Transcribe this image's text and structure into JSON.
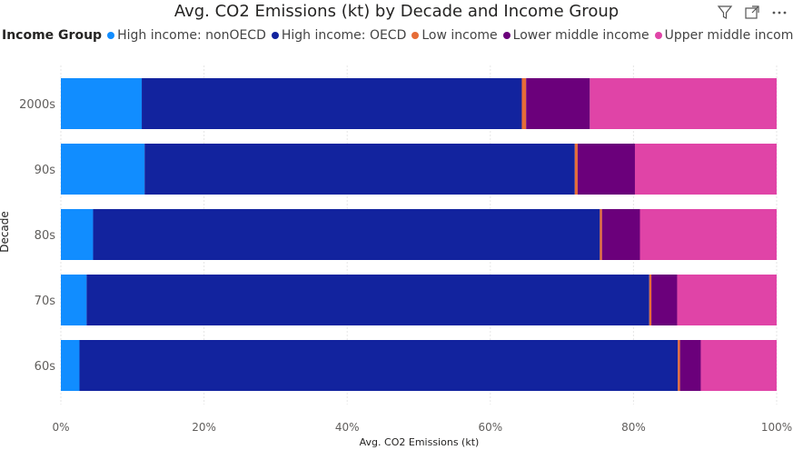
{
  "title": "Avg. CO2 Emissions (kt) by Decade and Income Group",
  "legend_title": "Income Group",
  "icons": [
    "filter-icon",
    "focus-mode-icon",
    "more-options-icon"
  ],
  "chart_data": {
    "type": "bar",
    "orientation": "horizontal",
    "stacked": "100%",
    "title": "Avg. CO2 Emissions (kt) by Decade and Income Group",
    "xlabel": "Avg. CO2 Emissions (kt)",
    "ylabel": "Decade",
    "xlim": [
      0,
      100
    ],
    "x_ticks": [
      "0%",
      "20%",
      "40%",
      "60%",
      "80%",
      "100%"
    ],
    "grid": "vertical gridlines",
    "legend_position": "top-left",
    "categories": [
      "2000s",
      "90s",
      "80s",
      "70s",
      "60s"
    ],
    "series": [
      {
        "name": "High income: nonOECD",
        "color": "#118DFF",
        "values": [
          11.3,
          11.7,
          4.5,
          3.6,
          2.6
        ]
      },
      {
        "name": "High income: OECD",
        "color": "#12239E",
        "values": [
          53.1,
          60.1,
          70.8,
          78.6,
          83.6
        ]
      },
      {
        "name": "Low income",
        "color": "#E66C37",
        "values": [
          0.6,
          0.4,
          0.3,
          0.3,
          0.3
        ]
      },
      {
        "name": "Lower middle income",
        "color": "#6B007B",
        "values": [
          8.9,
          8.0,
          5.3,
          3.6,
          2.9
        ]
      },
      {
        "name": "Upper middle income",
        "color": "#E044A7",
        "values": [
          26.1,
          19.8,
          19.1,
          13.9,
          10.6
        ]
      }
    ]
  }
}
